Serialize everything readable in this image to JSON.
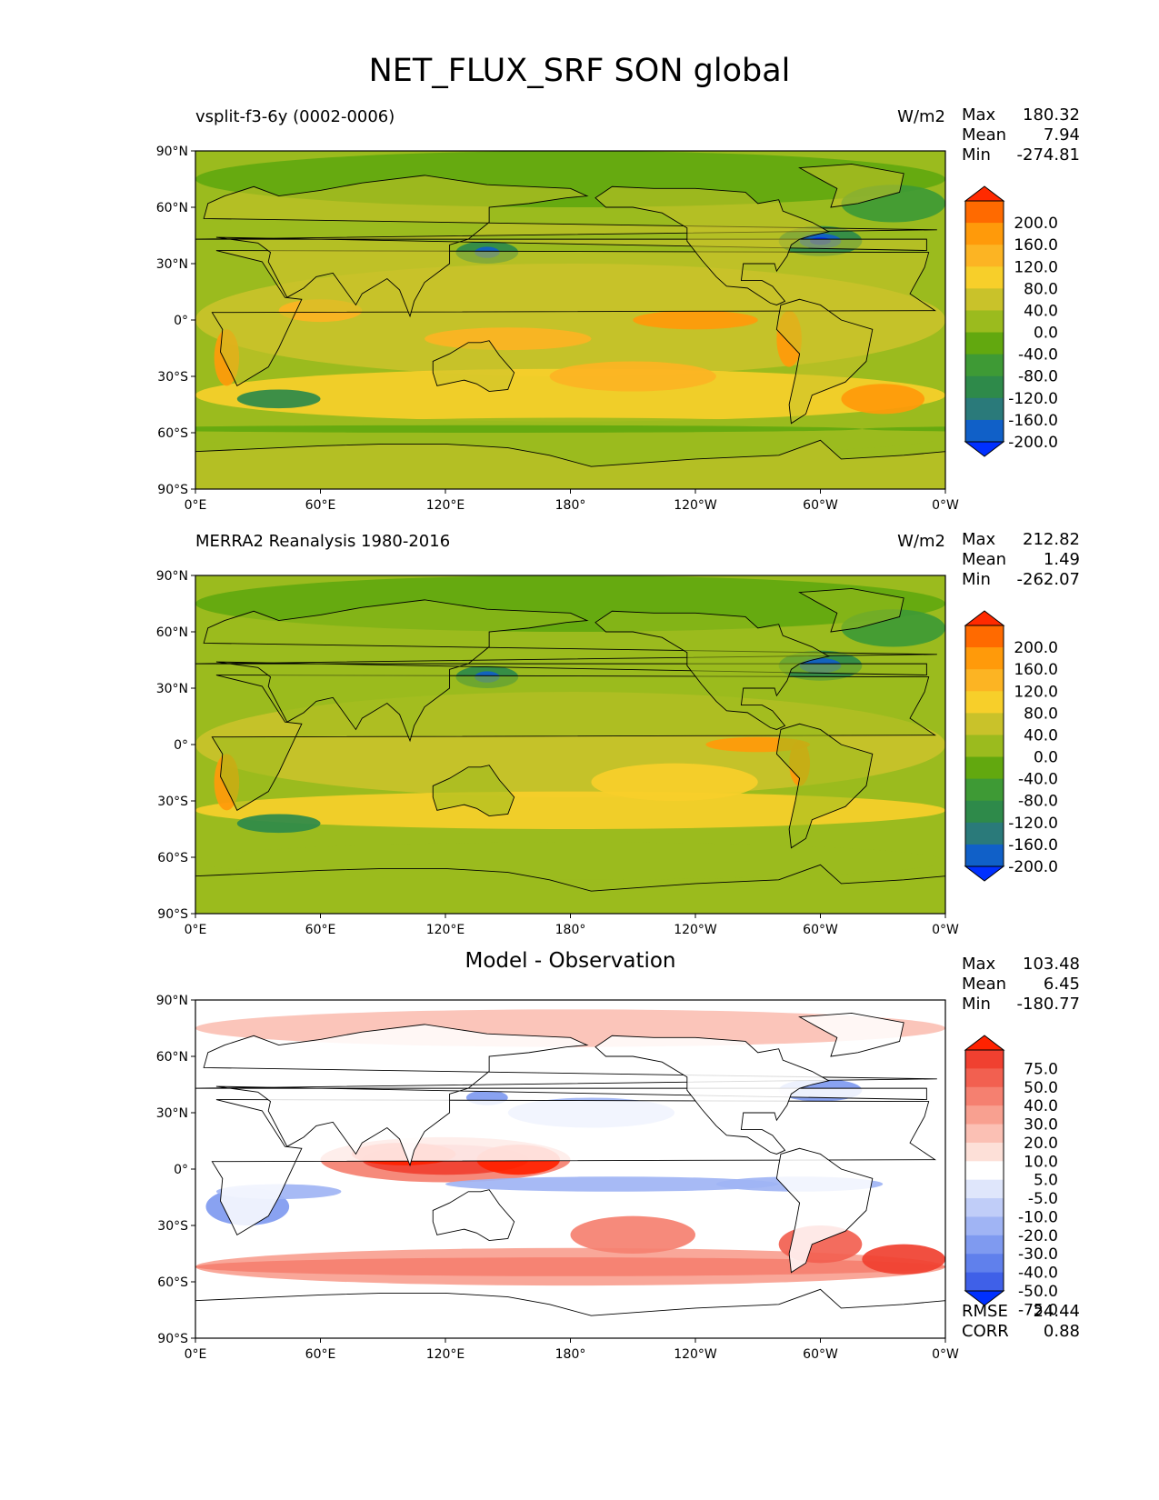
{
  "title": "NET_FLUX_SRF SON global",
  "chart_data": [
    {
      "type": "heatmap",
      "title_left": "vsplit-f3-6y (0002-0006)",
      "units": "W/m2",
      "stats": [
        {
          "label": "Max",
          "value": "180.32"
        },
        {
          "label": "Mean",
          "value": "7.94"
        },
        {
          "label": "Min",
          "value": "-274.81"
        }
      ],
      "xticks": [
        "0°E",
        "60°E",
        "120°E",
        "180°",
        "120°W",
        "60°W",
        "0°W"
      ],
      "yticks": [
        "90°N",
        "60°N",
        "30°N",
        "0°",
        "30°S",
        "60°S",
        "90°S"
      ],
      "colorbar": {
        "levels": [
          "200.0",
          "160.0",
          "120.0",
          "80.0",
          "40.0",
          "0.0",
          "-40.0",
          "-80.0",
          "-120.0",
          "-160.0",
          "-200.0"
        ],
        "colors": [
          "#ff2a00",
          "#ff6a00",
          "#ff9a0a",
          "#fcb423",
          "#f7cf2a",
          "#c9c22a",
          "#9bbb1e",
          "#62a80f",
          "#3e9a35",
          "#2e8a4a",
          "#2a7a7a",
          "#1060c8",
          "#0030ff"
        ]
      }
    },
    {
      "type": "heatmap",
      "title_left": "MERRA2 Reanalysis 1980-2016",
      "units": "W/m2",
      "stats": [
        {
          "label": "Max",
          "value": "212.82"
        },
        {
          "label": "Mean",
          "value": "1.49"
        },
        {
          "label": "Min",
          "value": "-262.07"
        }
      ],
      "xticks": [
        "0°E",
        "60°E",
        "120°E",
        "180°",
        "120°W",
        "60°W",
        "0°W"
      ],
      "yticks": [
        "90°N",
        "60°N",
        "30°N",
        "0°",
        "30°S",
        "60°S",
        "90°S"
      ],
      "colorbar": {
        "levels": [
          "200.0",
          "160.0",
          "120.0",
          "80.0",
          "40.0",
          "0.0",
          "-40.0",
          "-80.0",
          "-120.0",
          "-160.0",
          "-200.0"
        ],
        "colors": [
          "#ff2a00",
          "#ff6a00",
          "#ff9a0a",
          "#fcb423",
          "#f7cf2a",
          "#c9c22a",
          "#9bbb1e",
          "#62a80f",
          "#3e9a35",
          "#2e8a4a",
          "#2a7a7a",
          "#1060c8",
          "#0030ff"
        ]
      }
    },
    {
      "type": "heatmap",
      "title": "Model - Observation",
      "stats": [
        {
          "label": "Max",
          "value": "103.48"
        },
        {
          "label": "Mean",
          "value": "6.45"
        },
        {
          "label": "Min",
          "value": "-180.77"
        }
      ],
      "extra_stats": [
        {
          "label": "RMSE",
          "value": "24.44"
        },
        {
          "label": "CORR",
          "value": "0.88"
        }
      ],
      "xticks": [
        "0°E",
        "60°E",
        "120°E",
        "180°",
        "120°W",
        "60°W",
        "0°W"
      ],
      "yticks": [
        "90°N",
        "60°N",
        "30°N",
        "0°",
        "30°S",
        "60°S",
        "90°S"
      ],
      "colorbar": {
        "levels": [
          "75.0",
          "50.0",
          "40.0",
          "30.0",
          "20.0",
          "10.0",
          "5.0",
          "-5.0",
          "-10.0",
          "-20.0",
          "-30.0",
          "-40.0",
          "-50.0",
          "-75.0"
        ],
        "colors": [
          "#ff2200",
          "#f04030",
          "#f26050",
          "#f58070",
          "#f8a090",
          "#fbc0b4",
          "#fde0d8",
          "#ffffff",
          "#dfe6fb",
          "#c0cdf8",
          "#a0b4f4",
          "#7f9af0",
          "#6080ec",
          "#3f60e8",
          "#0030ff"
        ]
      }
    }
  ]
}
